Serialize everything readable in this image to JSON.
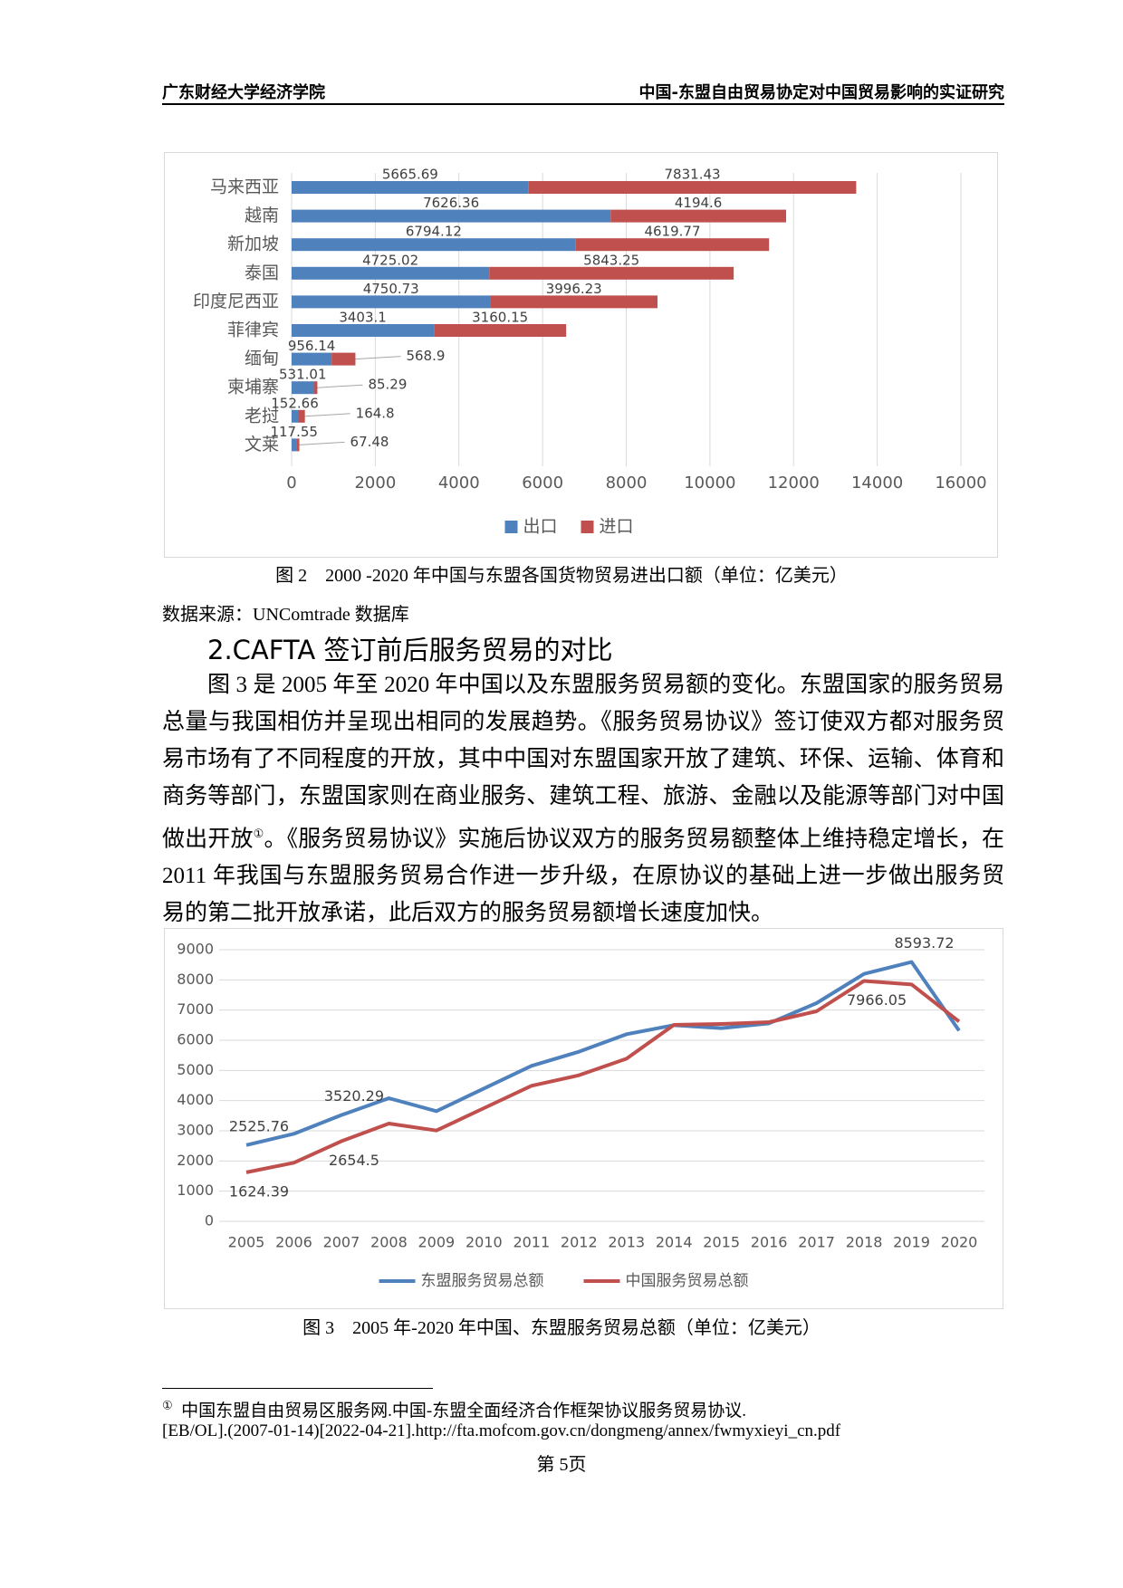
{
  "header": {
    "left": "广东财经大学经济学院",
    "right": "中国-东盟自由贸易协定对中国贸易影响的实证研究"
  },
  "chart_data": [
    {
      "type": "bar",
      "orientation": "horizontal",
      "stacked": true,
      "categories": [
        "马来西亚",
        "越南",
        "新加坡",
        "泰国",
        "印度尼西亚",
        "菲律宾",
        "缅甸",
        "柬埔寨",
        "老挝",
        "文莱"
      ],
      "series": [
        {
          "name": "出口",
          "color": "#4f81bd",
          "values": [
            5665.69,
            7626.36,
            6794.12,
            4725.02,
            4750.73,
            3403.1,
            956.14,
            531.01,
            152.66,
            117.55
          ]
        },
        {
          "name": "进口",
          "color": "#c0504d",
          "values": [
            7831.43,
            4194.6,
            4619.77,
            5843.25,
            3996.23,
            3160.15,
            568.9,
            85.29,
            164.8,
            67.48
          ]
        }
      ],
      "xlim": [
        0,
        16000
      ],
      "xticks": [
        0,
        2000,
        4000,
        6000,
        8000,
        10000,
        12000,
        14000,
        16000
      ],
      "grid": true,
      "legend": "bottom"
    },
    {
      "type": "line",
      "categories": [
        "2005",
        "2006",
        "2007",
        "2008",
        "2009",
        "2010",
        "2011",
        "2012",
        "2013",
        "2014",
        "2015",
        "2016",
        "2017",
        "2018",
        "2019",
        "2020"
      ],
      "series": [
        {
          "name": "东盟服务贸易总额",
          "color": "#4f81bd",
          "values": [
            2525.76,
            2900,
            3520.29,
            4080,
            3650,
            4400,
            5150,
            5620,
            6200,
            6500,
            6400,
            6560,
            7230,
            8200,
            8593.72,
            6320
          ],
          "value_labels": [
            "2525.76",
            null,
            "3520.29",
            null,
            null,
            null,
            null,
            null,
            null,
            null,
            null,
            null,
            null,
            null,
            "8593.72",
            null
          ]
        },
        {
          "name": "中国服务贸易总额",
          "color": "#c0504d",
          "values": [
            1624.39,
            1940,
            2654.5,
            3240,
            3010,
            3750,
            4490,
            4840,
            5390,
            6510,
            6540,
            6600,
            6960,
            7966.05,
            7850,
            6620
          ],
          "value_labels": [
            "1624.39",
            null,
            "2654.5",
            null,
            null,
            null,
            null,
            null,
            null,
            null,
            null,
            null,
            null,
            "7966.05",
            null,
            null
          ]
        }
      ],
      "ylim": [
        0,
        9000
      ],
      "yticks": [
        0,
        1000,
        2000,
        3000,
        4000,
        5000,
        6000,
        7000,
        8000,
        9000
      ],
      "grid": true,
      "legend": "bottom"
    }
  ],
  "figure2_caption": "图 2    2000 -2020 年中国与东盟各国货物贸易进出口额（单位：亿美元）",
  "source": "数据来源：UNComtrade 数据库",
  "section_heading": "2.CAFTA 签订前后服务贸易的对比",
  "paragraph": {
    "before": "图 3 是 2005 年至 2020 年中国以及东盟服务贸易额的变化。东盟国家的服务贸易总量与我国相仿并呈现出相同的发展趋势。《服务贸易协议》签订使双方都对服务贸易市场有了不同程度的开放，其中中国对东盟国家开放了建筑、环保、运输、体育和商务等部门，东盟国家则在商业服务、建筑工程、旅游、金融以及能源等部门对中国做出开放",
    "footnote_ref": "①",
    "after": "。《服务贸易协议》实施后协议双方的服务贸易额整体上维持稳定增长，在 2011 年我国与东盟服务贸易合作进一步升级，在原协议的基础上进一步做出服务贸易的第二批开放承诺，此后双方的服务贸易额增长速度加快。"
  },
  "figure3_caption": "图 3    2005 年-2020 年中国、东盟服务贸易总额（单位：亿美元）",
  "footnote": {
    "marker": "①",
    "lines": [
      "中国东盟自由贸易区服务网.中国-东盟全面经济合作框架协议服务贸易协议.",
      "[EB/OL].(2007-01-14)[2022-04-21].http://fta.mofcom.gov.cn/dongmeng/annex/fwmyxieyi_cn.pdf"
    ]
  },
  "page_number": "第 5页"
}
